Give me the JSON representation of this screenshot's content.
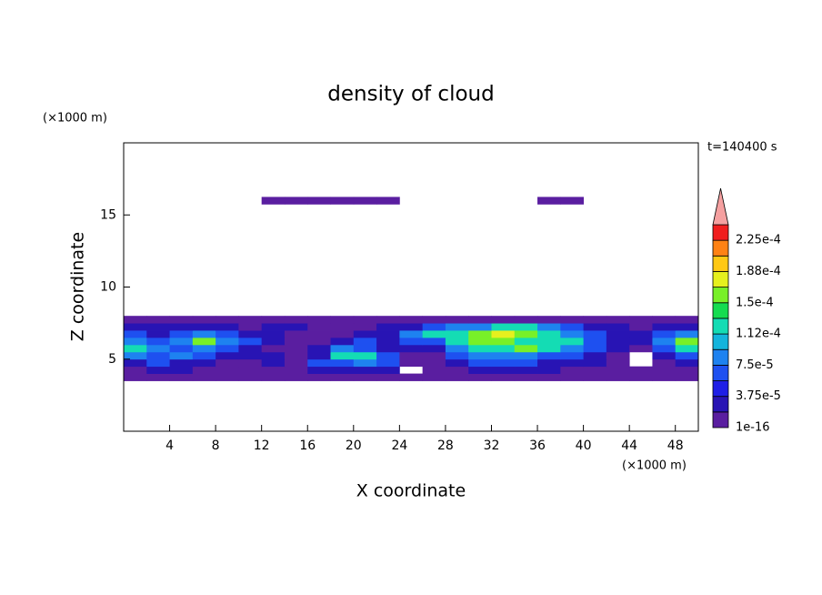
{
  "chart_data": {
    "type": "contour",
    "title": "density of cloud",
    "xlabel": "X coordinate",
    "ylabel": "Z coordinate",
    "x_unit": "(×1000 m)",
    "y_unit": "(×1000 m)",
    "time_label": "t=140400 s",
    "xlim": [
      0,
      50
    ],
    "ylim": [
      0,
      20
    ],
    "xticks": [
      4,
      8,
      12,
      16,
      20,
      24,
      28,
      32,
      36,
      40,
      44,
      48
    ],
    "yticks": [
      5,
      10,
      15
    ],
    "x": [
      1,
      3,
      5,
      7,
      9,
      11,
      13,
      15,
      17,
      19,
      21,
      23,
      25,
      27,
      29,
      31,
      33,
      35,
      37,
      39,
      41,
      43,
      45,
      47,
      49
    ],
    "y": [
      3.75,
      4.25,
      4.75,
      5.25,
      5.75,
      6.25,
      6.75,
      7.25,
      7.75,
      16
    ],
    "values": [
      [
        1e-06,
        1e-06,
        1e-06,
        1e-06,
        1e-06,
        1e-06,
        1e-06,
        1e-06,
        1e-06,
        1e-06,
        1e-06,
        1e-06,
        1e-06,
        1e-06,
        1e-06,
        1e-06,
        1e-06,
        1e-06,
        1e-06,
        1e-06,
        1e-06,
        1e-06,
        1e-06,
        1e-06,
        1e-06
      ],
      [
        1e-06,
        3e-05,
        3e-05,
        1e-06,
        1e-06,
        1e-06,
        1e-06,
        1e-06,
        3e-05,
        3e-05,
        3e-05,
        3e-05,
        null,
        1e-06,
        1e-06,
        3e-05,
        3e-05,
        3e-05,
        3e-05,
        1e-06,
        1e-06,
        1e-06,
        1e-06,
        1e-06,
        1e-06
      ],
      [
        3e-05,
        6e-05,
        3e-05,
        3e-05,
        1e-06,
        1e-06,
        3e-05,
        1e-06,
        6e-05,
        6e-05,
        9e-05,
        6e-05,
        1e-06,
        1e-06,
        3e-05,
        6e-05,
        6e-05,
        6e-05,
        3e-05,
        3e-05,
        3e-05,
        1e-06,
        null,
        1e-06,
        3e-05
      ],
      [
        9e-05,
        6e-05,
        9e-05,
        6e-05,
        3e-05,
        3e-05,
        3e-05,
        1e-06,
        3e-05,
        0.00012,
        0.00012,
        6e-05,
        1e-06,
        1e-06,
        6e-05,
        9e-05,
        9e-05,
        9e-05,
        6e-05,
        6e-05,
        3e-05,
        1e-06,
        null,
        3e-05,
        6e-05
      ],
      [
        0.00012,
        9e-05,
        6e-05,
        9e-05,
        6e-05,
        3e-05,
        1e-06,
        1e-06,
        3e-05,
        9e-05,
        6e-05,
        3e-05,
        3e-05,
        3e-05,
        9e-05,
        0.00012,
        0.00012,
        0.00015,
        0.00012,
        9e-05,
        6e-05,
        3e-05,
        1e-06,
        6e-05,
        0.00012
      ],
      [
        9e-05,
        6e-05,
        9e-05,
        0.00015,
        9e-05,
        6e-05,
        3e-05,
        1e-06,
        1e-06,
        3e-05,
        6e-05,
        3e-05,
        6e-05,
        6e-05,
        0.00012,
        0.00015,
        0.00015,
        0.00012,
        0.00012,
        0.00012,
        6e-05,
        3e-05,
        3e-05,
        9e-05,
        0.00015
      ],
      [
        6e-05,
        3e-05,
        6e-05,
        9e-05,
        6e-05,
        3e-05,
        3e-05,
        1e-06,
        1e-06,
        1e-06,
        3e-05,
        3e-05,
        9e-05,
        0.00012,
        0.00012,
        0.00015,
        0.00017,
        0.00015,
        0.00012,
        9e-05,
        6e-05,
        3e-05,
        3e-05,
        6e-05,
        9e-05
      ],
      [
        3e-05,
        3e-05,
        3e-05,
        3e-05,
        3e-05,
        1e-06,
        3e-05,
        3e-05,
        1e-06,
        1e-06,
        1e-06,
        3e-05,
        3e-05,
        6e-05,
        9e-05,
        9e-05,
        0.00012,
        0.00012,
        9e-05,
        6e-05,
        3e-05,
        3e-05,
        1e-06,
        3e-05,
        3e-05
      ],
      [
        1e-06,
        1e-06,
        1e-06,
        1e-06,
        1e-06,
        1e-06,
        1e-06,
        1e-06,
        1e-06,
        1e-06,
        1e-06,
        1e-06,
        1e-06,
        1e-06,
        1e-06,
        1e-06,
        1e-06,
        1e-06,
        1e-06,
        1e-06,
        1e-06,
        1e-06,
        1e-06,
        1e-06,
        1e-06
      ],
      [
        null,
        null,
        null,
        null,
        null,
        null,
        1e-06,
        1e-06,
        1e-06,
        1e-06,
        1e-06,
        1e-06,
        null,
        null,
        null,
        null,
        null,
        null,
        1e-06,
        1e-06,
        null,
        null,
        null,
        null,
        null
      ]
    ],
    "colorbar": {
      "levels": [
        1e-16,
        1.875e-05,
        3.75e-05,
        5.625e-05,
        7.5e-05,
        9.375e-05,
        0.0001125,
        0.00013125,
        0.00015,
        0.00016875,
        0.0001875,
        0.00020625,
        0.000225,
        0.00024375
      ],
      "colors": [
        "#5a1ea0",
        "#2814b4",
        "#1e1ee6",
        "#1e50f0",
        "#1e82f0",
        "#14b4dc",
        "#14dcb4",
        "#14dc50",
        "#78f028",
        "#e6f01e",
        "#ffc814",
        "#ff8214",
        "#f01e1e"
      ],
      "extend_color": "#f5a0a0",
      "ticks": [
        {
          "value": 1e-16,
          "label": "1e-16"
        },
        {
          "value": 3.75e-05,
          "label": "3.75e-5"
        },
        {
          "value": 7.5e-05,
          "label": "7.5e-5"
        },
        {
          "value": 0.0001125,
          "label": "1.12e-4"
        },
        {
          "value": 0.00015,
          "label": "1.5e-4"
        },
        {
          "value": 0.0001875,
          "label": "1.88e-4"
        },
        {
          "value": 0.000225,
          "label": "2.25e-4"
        }
      ]
    }
  }
}
